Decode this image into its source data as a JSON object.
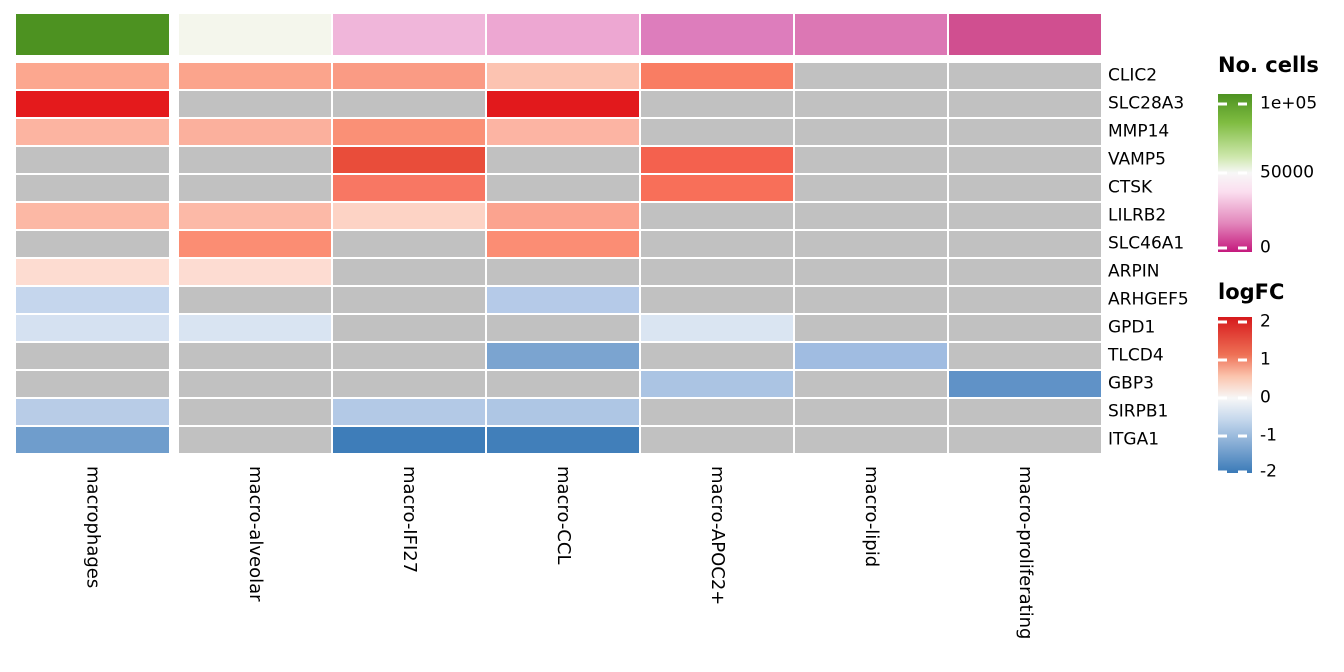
{
  "chart_data": {
    "type": "heatmap",
    "na_color": "#c1c1c1",
    "columns": [
      "macrophages",
      "macro-alveolar",
      "macro-IFI27",
      "macro-CCL",
      "macro-APOC2+",
      "macro-lipid",
      "macro-proliferating"
    ],
    "rows": [
      {
        "gene": "CLIC2",
        "logfc": [
          0.9,
          0.9,
          1.0,
          0.7,
          1.3,
          null,
          null
        ],
        "colors": [
          "#fca78f",
          "#fba48c",
          "#fa9b84",
          "#fcc3b1",
          "#f97d63",
          null,
          null
        ]
      },
      {
        "gene": "SLC28A3",
        "logfc": [
          2.1,
          null,
          null,
          2.1,
          null,
          null,
          null
        ],
        "colors": [
          "#e41a1c",
          null,
          null,
          "#e2191c",
          null,
          null,
          null
        ]
      },
      {
        "gene": "MMP14",
        "logfc": [
          0.8,
          0.8,
          1.1,
          0.8,
          null,
          null,
          null
        ],
        "colors": [
          "#fcb4a1",
          "#fbb09d",
          "#fa9076",
          "#fcb4a3",
          null,
          null,
          null
        ]
      },
      {
        "gene": "VAMP5",
        "logfc": [
          null,
          null,
          1.7,
          null,
          1.5,
          null,
          null
        ],
        "colors": [
          null,
          null,
          "#e94d3a",
          null,
          "#f4614e",
          null,
          null
        ]
      },
      {
        "gene": "CTSK",
        "logfc": [
          null,
          null,
          1.35,
          null,
          1.4,
          null,
          null
        ],
        "colors": [
          null,
          null,
          "#f87763",
          null,
          "#f86f59",
          null,
          null
        ]
      },
      {
        "gene": "LILRB2",
        "logfc": [
          0.75,
          0.75,
          0.5,
          0.95,
          null,
          null,
          null
        ],
        "colors": [
          "#fcb8a5",
          "#fcb9a7",
          "#fdd3c5",
          "#fba38f",
          null,
          null,
          null
        ]
      },
      {
        "gene": "SLC46A1",
        "logfc": [
          null,
          1.15,
          null,
          1.15,
          null,
          null,
          null
        ],
        "colors": [
          null,
          "#fb8d73",
          null,
          "#fb8d74",
          null,
          null,
          null
        ]
      },
      {
        "gene": "ARPIN",
        "logfc": [
          0.4,
          0.4,
          null,
          null,
          null,
          null,
          null
        ],
        "colors": [
          "#fddcd1",
          "#fddcd2",
          null,
          null,
          null,
          null,
          null
        ]
      },
      {
        "gene": "ARHGEF5",
        "logfc": [
          -0.6,
          null,
          null,
          -0.8,
          null,
          null,
          null
        ],
        "colors": [
          "#c5d6ed",
          null,
          null,
          "#b5cae8",
          null,
          null,
          null
        ]
      },
      {
        "gene": "GPD1",
        "logfc": [
          -0.45,
          -0.4,
          null,
          null,
          -0.4,
          null,
          null
        ],
        "colors": [
          "#d5e1f1",
          "#d9e4f2",
          null,
          null,
          "#dae5f2",
          null,
          null
        ]
      },
      {
        "gene": "TLCD4",
        "logfc": [
          null,
          null,
          null,
          -1.45,
          null,
          -1.0,
          null
        ],
        "colors": [
          null,
          null,
          null,
          "#7ba4d0",
          null,
          "#a0bce1",
          null
        ]
      },
      {
        "gene": "GBP3",
        "logfc": [
          null,
          null,
          null,
          null,
          -0.9,
          null,
          -1.7
        ],
        "colors": [
          null,
          null,
          null,
          null,
          "#abc4e3",
          null,
          "#6092c7"
        ]
      },
      {
        "gene": "SIRPB1",
        "logfc": [
          -0.75,
          null,
          -0.8,
          -0.85,
          null,
          null,
          null
        ],
        "colors": [
          "#b8cce7",
          null,
          "#b3c9e6",
          "#aec6e4",
          null,
          null,
          null
        ]
      },
      {
        "gene": "ITGA1",
        "logfc": [
          -1.55,
          null,
          -2.0,
          -1.95,
          null,
          null,
          null
        ],
        "colors": [
          "#6f9dcc",
          null,
          "#3e7db9",
          "#417fba",
          null,
          null,
          null
        ]
      }
    ],
    "annotation": {
      "title": "No. cells",
      "values": [
        100000,
        52000,
        33000,
        29000,
        19000,
        18000,
        9000
      ],
      "colors": [
        "#4d9221",
        "#f4f6ec",
        "#f0b6da",
        "#eda7d2",
        "#dd7dbc",
        "#dc77b4",
        "#d04f90"
      ]
    },
    "legends": {
      "no_cells": {
        "title": "No. cells",
        "ticks": [
          {
            "label": "1e+05",
            "pct": 6.3
          },
          {
            "label": "50000",
            "pct": 50
          },
          {
            "label": "0",
            "pct": 97.5
          }
        ],
        "gradient": [
          {
            "color": "#4d9221",
            "pct": 0
          },
          {
            "color": "#7fbc41",
            "pct": 18
          },
          {
            "color": "#cfe8ae",
            "pct": 40
          },
          {
            "color": "#f7f7f7",
            "pct": 50
          },
          {
            "color": "#fbdeef",
            "pct": 62
          },
          {
            "color": "#e286bb",
            "pct": 82
          },
          {
            "color": "#c5197d",
            "pct": 100
          }
        ]
      },
      "logfc": {
        "title": "logFC",
        "ticks": [
          {
            "label": "2",
            "pct": 3.2
          },
          {
            "label": "1",
            "pct": 27.6
          },
          {
            "label": "0",
            "pct": 52
          },
          {
            "label": "-1",
            "pct": 76.3
          },
          {
            "label": "-2",
            "pct": 99.4
          }
        ],
        "gradient": [
          {
            "color": "#d6191c",
            "pct": 0
          },
          {
            "color": "#ee7055",
            "pct": 24
          },
          {
            "color": "#fbc4ad",
            "pct": 38
          },
          {
            "color": "#f7f7f7",
            "pct": 52
          },
          {
            "color": "#c4d7ec",
            "pct": 66
          },
          {
            "color": "#84abd4",
            "pct": 82
          },
          {
            "color": "#3a7ab8",
            "pct": 100
          }
        ]
      }
    }
  }
}
